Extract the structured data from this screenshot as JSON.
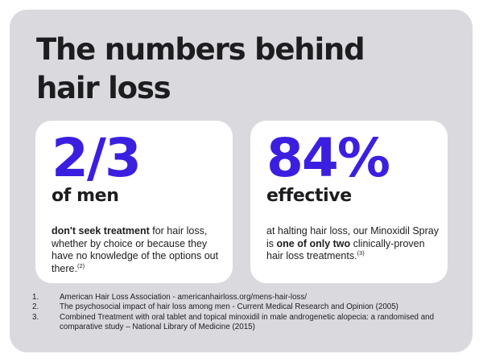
{
  "title": {
    "line1": "The numbers behind",
    "line2": "hair loss"
  },
  "cards": [
    {
      "big": "2/3",
      "sub": "of men",
      "desc_bold": "don't seek treatment",
      "desc_rest": " for hair loss, whether by choice or because they have no knowledge of the options out there.",
      "desc_sup": "(2)"
    },
    {
      "big": "84%",
      "sub": "effective",
      "desc_pre": "at halting hair loss, our Minoxidil Spray is ",
      "desc_bold": "one of only two",
      "desc_post": " clinically-proven hair loss treatments.",
      "desc_sup": "(3)"
    }
  ],
  "references": [
    {
      "num": "1.",
      "text": "American Hair Loss Association - americanhairloss.org/mens-hair-loss/"
    },
    {
      "num": "2.",
      "text": "The psychosocial impact of hair loss among men - Current Medical Research and Opinion (2005)"
    },
    {
      "num": "3.",
      "text": "Combined Treatment with oral tablet and topical minoxidil in male androgenetic alopecia: a randomised and comparative study –  National Library of Medicine (2015)"
    }
  ],
  "colors": {
    "panel_bg": "#d9d9de",
    "card_bg": "#ffffff",
    "accent": "#3b1fe0",
    "text": "#1d1d1f"
  }
}
